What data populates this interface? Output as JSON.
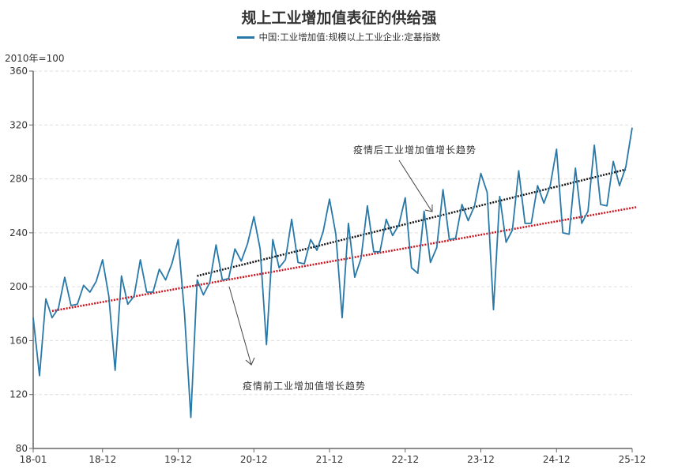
{
  "chart_data": {
    "type": "line",
    "title": "规上工业增加值表征的供给强",
    "ylabel": "2010年=100",
    "ylim": [
      80,
      360
    ],
    "yticks": [
      "80",
      "120",
      "160",
      "200",
      "240",
      "280",
      "320",
      "360"
    ],
    "xticks": [
      "18-01",
      "18-12",
      "19-12",
      "20-12",
      "21-12",
      "22-12",
      "23-12",
      "24-12",
      "25-12"
    ],
    "grid": "horizontal dashed",
    "legend_placement": "top-center",
    "categories": [
      "18-01",
      "18-02",
      "18-03",
      "18-04",
      "18-05",
      "18-06",
      "18-07",
      "18-08",
      "18-09",
      "18-10",
      "18-11",
      "18-12",
      "19-01",
      "19-02",
      "19-03",
      "19-04",
      "19-05",
      "19-06",
      "19-07",
      "19-08",
      "19-09",
      "19-10",
      "19-11",
      "19-12",
      "20-01",
      "20-02",
      "20-03",
      "20-04",
      "20-05",
      "20-06",
      "20-07",
      "20-08",
      "20-09",
      "20-10",
      "20-11",
      "20-12",
      "21-01",
      "21-02",
      "21-03",
      "21-04",
      "21-05",
      "21-06",
      "21-07",
      "21-08",
      "21-09",
      "21-10",
      "21-11",
      "21-12",
      "22-01",
      "22-02",
      "22-03",
      "22-04",
      "22-05",
      "22-06",
      "22-07",
      "22-08",
      "22-09",
      "22-10",
      "22-11",
      "22-12",
      "23-01",
      "23-02",
      "23-03",
      "23-04",
      "23-05",
      "23-06",
      "23-07",
      "23-08",
      "23-09",
      "23-10",
      "23-11",
      "23-12",
      "24-01",
      "24-02",
      "24-03",
      "24-04",
      "24-05",
      "24-06",
      "24-07",
      "24-08",
      "24-09",
      "24-10",
      "24-11",
      "24-12",
      "25-01",
      "25-02",
      "25-03",
      "25-04",
      "25-05",
      "25-06",
      "25-07",
      "25-08",
      "25-09",
      "25-10",
      "25-11",
      "25-12"
    ],
    "series": [
      {
        "name": "中国:工业增加值:规模以上工业企业:定基指数",
        "color": "#2878a8",
        "values": [
          177,
          134,
          191,
          177,
          184,
          207,
          186,
          187,
          201,
          196,
          204,
          220,
          193,
          138,
          208,
          187,
          193,
          220,
          196,
          196,
          213,
          205,
          217,
          235,
          180,
          103,
          205,
          194,
          203,
          231,
          205,
          206,
          228,
          219,
          232,
          252,
          228,
          157,
          235,
          214,
          220,
          250,
          218,
          217,
          235,
          227,
          241,
          265,
          239,
          177,
          247,
          207,
          221,
          260,
          226,
          226,
          250,
          238,
          246,
          266,
          214,
          210,
          256,
          218,
          229,
          272,
          235,
          236,
          261,
          249,
          260,
          284,
          270,
          183,
          267,
          233,
          242,
          286,
          247,
          247,
          275,
          262,
          275,
          302,
          240,
          239,
          288,
          247,
          256,
          305,
          261,
          260,
          293,
          275,
          289,
          318
        ]
      }
    ],
    "trendlines": [
      {
        "label": "疫情前工业增加值增长趋势",
        "color": "#d0101a",
        "from": {
          "x": "18-04",
          "y": 182
        },
        "to": {
          "x": "25-12",
          "y": 259
        }
      },
      {
        "label": "疫情后工业增加值增长趋势",
        "color": "#111111",
        "from": {
          "x": "20-03",
          "y": 208
        },
        "to": {
          "x": "25-11",
          "y": 287
        }
      }
    ]
  }
}
